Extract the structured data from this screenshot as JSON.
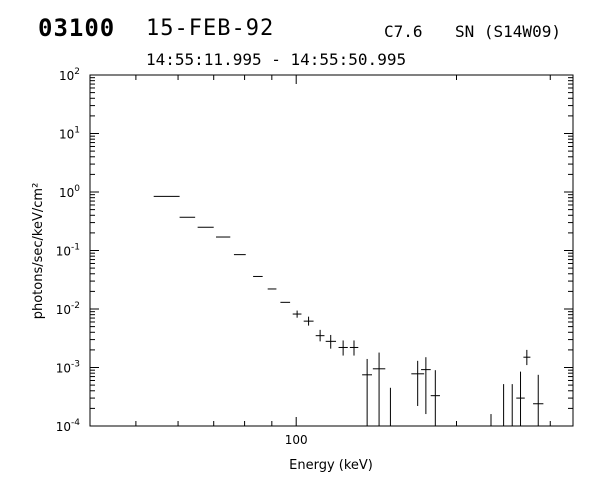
{
  "header": {
    "event_id": "03100",
    "date": "15-FEB-92",
    "flare_class": "C7.6",
    "location": "SN (S14W09)",
    "time_range": "14:55:11.995 - 14:55:50.995"
  },
  "chart_data": {
    "type": "scatter",
    "xlabel": "Energy (keV)",
    "ylabel": "photons/sec/keV/cm²",
    "x_scale": "log",
    "y_scale": "log",
    "xlim": [
      41,
      331
    ],
    "ylim": [
      0.0001,
      100
    ],
    "x_ticks": [
      {
        "value": 100,
        "label": "100"
      }
    ],
    "y_ticks": [
      {
        "value": 100,
        "mantissa": "10",
        "exp": "2"
      },
      {
        "value": 10,
        "mantissa": "10",
        "exp": "1"
      },
      {
        "value": 1,
        "mantissa": "10",
        "exp": "0"
      },
      {
        "value": 0.1,
        "mantissa": "10",
        "exp": "-1"
      },
      {
        "value": 0.01,
        "mantissa": "10",
        "exp": "-2"
      },
      {
        "value": 0.001,
        "mantissa": "10",
        "exp": "-3"
      },
      {
        "value": 0.0001,
        "mantissa": "10",
        "exp": "-4"
      }
    ],
    "points": [
      {
        "x": 57.1,
        "xlo": 54.0,
        "xhi": 60.4,
        "y": 0.84
      },
      {
        "x": 62.5,
        "xlo": 60.4,
        "xhi": 64.6,
        "y": 0.37
      },
      {
        "x": 67.6,
        "xlo": 65.3,
        "xhi": 70.0,
        "y": 0.25
      },
      {
        "x": 72.9,
        "xlo": 70.7,
        "xhi": 75.2,
        "y": 0.17
      },
      {
        "x": 78.4,
        "xlo": 76.4,
        "xhi": 80.4,
        "y": 0.085
      },
      {
        "x": 84.7,
        "xlo": 83.0,
        "xhi": 86.5,
        "y": 0.036
      },
      {
        "x": 90.1,
        "xlo": 88.4,
        "xhi": 91.8,
        "y": 0.022
      },
      {
        "x": 95.4,
        "xlo": 93.4,
        "xhi": 97.4,
        "y": 0.013
      },
      {
        "x": 100.4,
        "xlo": 98.5,
        "xhi": 102.3,
        "y": 0.0082,
        "ylo": 0.0071,
        "yhi": 0.0094
      },
      {
        "x": 105.5,
        "xlo": 103.3,
        "xhi": 107.8,
        "y": 0.0062,
        "ylo": 0.0052,
        "yhi": 0.0074
      },
      {
        "x": 110.9,
        "xlo": 108.8,
        "xhi": 113.0,
        "y": 0.0035,
        "ylo": 0.0028,
        "yhi": 0.0044
      },
      {
        "x": 116.1,
        "xlo": 113.6,
        "xhi": 118.8,
        "y": 0.0028,
        "ylo": 0.0021,
        "yhi": 0.0036
      },
      {
        "x": 122.5,
        "xlo": 120.1,
        "xhi": 125.0,
        "y": 0.0022,
        "ylo": 0.0016,
        "yhi": 0.0029
      },
      {
        "x": 128.4,
        "xlo": 126.1,
        "xhi": 130.8,
        "y": 0.0022,
        "ylo": 0.0016,
        "yhi": 0.0029
      },
      {
        "x": 135.9,
        "xlo": 133.0,
        "xhi": 138.8,
        "y": 0.00075,
        "ylo": 0.0001,
        "yhi": 0.0014
      },
      {
        "x": 143.1,
        "xlo": 139.3,
        "xhi": 147.0,
        "y": 0.00095,
        "ylo": 0.0001,
        "yhi": 0.0018
      },
      {
        "x": 150.3,
        "xlo": 150.3,
        "xhi": 150.3,
        "y": 0.00027,
        "ylo": 0.0001,
        "yhi": 0.00045
      },
      {
        "x": 169.1,
        "xlo": 164.5,
        "xhi": 173.9,
        "y": 0.00078,
        "ylo": 0.00022,
        "yhi": 0.0013
      },
      {
        "x": 175.2,
        "xlo": 171.6,
        "xhi": 178.9,
        "y": 0.00092,
        "ylo": 0.00016,
        "yhi": 0.0015
      },
      {
        "x": 182.5,
        "xlo": 178.9,
        "xhi": 186.2,
        "y": 0.00033,
        "ylo": 0.0001,
        "yhi": 0.0009
      },
      {
        "x": 232.2,
        "xlo": 232.2,
        "xhi": 232.2,
        "y": 0.00011,
        "ylo": 0.0001,
        "yhi": 0.00016
      },
      {
        "x": 245.2,
        "xlo": 245.2,
        "xhi": 245.2,
        "y": 0.00018,
        "ylo": 0.0001,
        "yhi": 0.00052
      },
      {
        "x": 254.5,
        "xlo": 254.5,
        "xhi": 254.5,
        "y": 0.00018,
        "ylo": 0.0001,
        "yhi": 0.00052
      },
      {
        "x": 263.8,
        "xlo": 259.0,
        "xhi": 268.7,
        "y": 0.0003,
        "ylo": 0.0001,
        "yhi": 0.00085
      },
      {
        "x": 271.1,
        "xlo": 267.1,
        "xhi": 275.3,
        "y": 0.0015,
        "ylo": 0.0011,
        "yhi": 0.002
      },
      {
        "x": 284.8,
        "xlo": 278.5,
        "xhi": 291.2,
        "y": 0.00024,
        "ylo": 0.0001,
        "yhi": 0.00075
      }
    ]
  }
}
